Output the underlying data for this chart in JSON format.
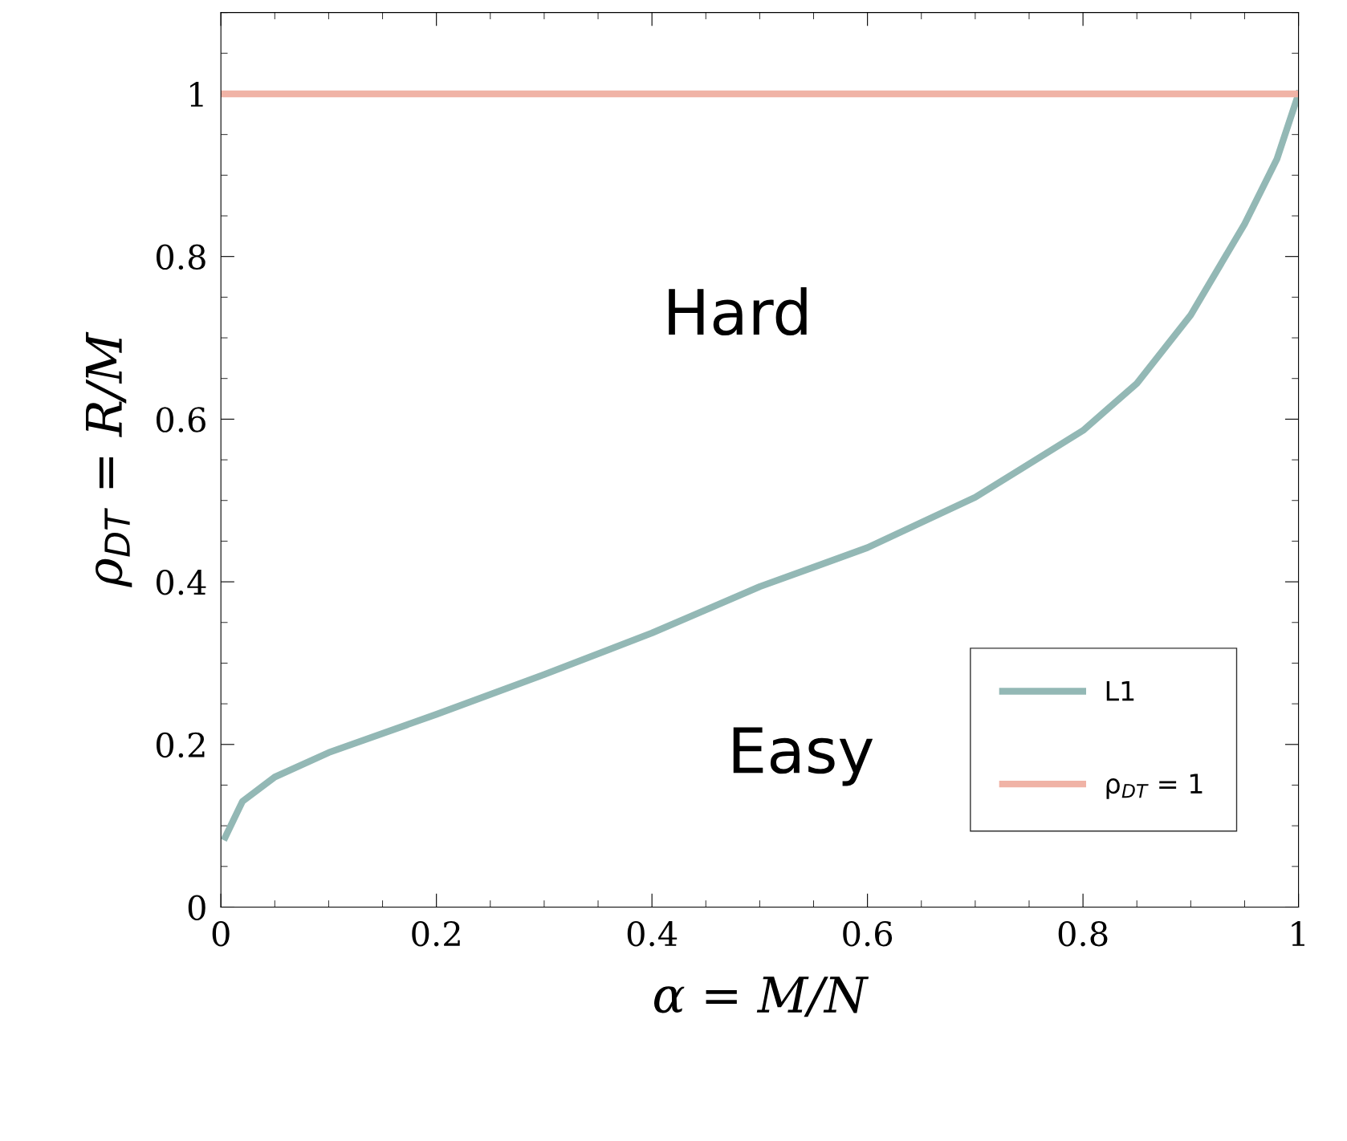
{
  "chart_data": {
    "type": "line",
    "xlabel": "α = M/N",
    "ylabel": "ρ$_{DT}$ = R/M",
    "series": [
      {
        "name": "L1",
        "color": "#93b8b5",
        "x": [
          0.004,
          0.02,
          0.05,
          0.1,
          0.2,
          0.3,
          0.4,
          0.5,
          0.6,
          0.7,
          0.8,
          0.85,
          0.9,
          0.95,
          0.98,
          1.0
        ],
        "values": [
          0.086,
          0.13,
          0.16,
          0.19,
          0.237,
          0.286,
          0.337,
          0.394,
          0.442,
          0.504,
          0.586,
          0.644,
          0.728,
          0.84,
          0.92,
          1.0
        ]
      },
      {
        "name": "ρ$_{DT}$ = 1",
        "color": "#f0b3a6",
        "x": [
          0,
          1
        ],
        "values": [
          1,
          1
        ]
      }
    ],
    "annotations": [
      "Hard",
      "Easy"
    ],
    "xlim": [
      0,
      1
    ],
    "xticks": [
      0,
      0.2,
      0.4,
      0.6,
      0.8,
      1
    ],
    "ylim": [
      0,
      1.1
    ],
    "yticks": [
      0,
      0.2,
      0.4,
      0.6,
      0.8,
      1
    ],
    "grid": false,
    "legend": "bottom right",
    "marker": "none",
    "line_style": "solid"
  }
}
